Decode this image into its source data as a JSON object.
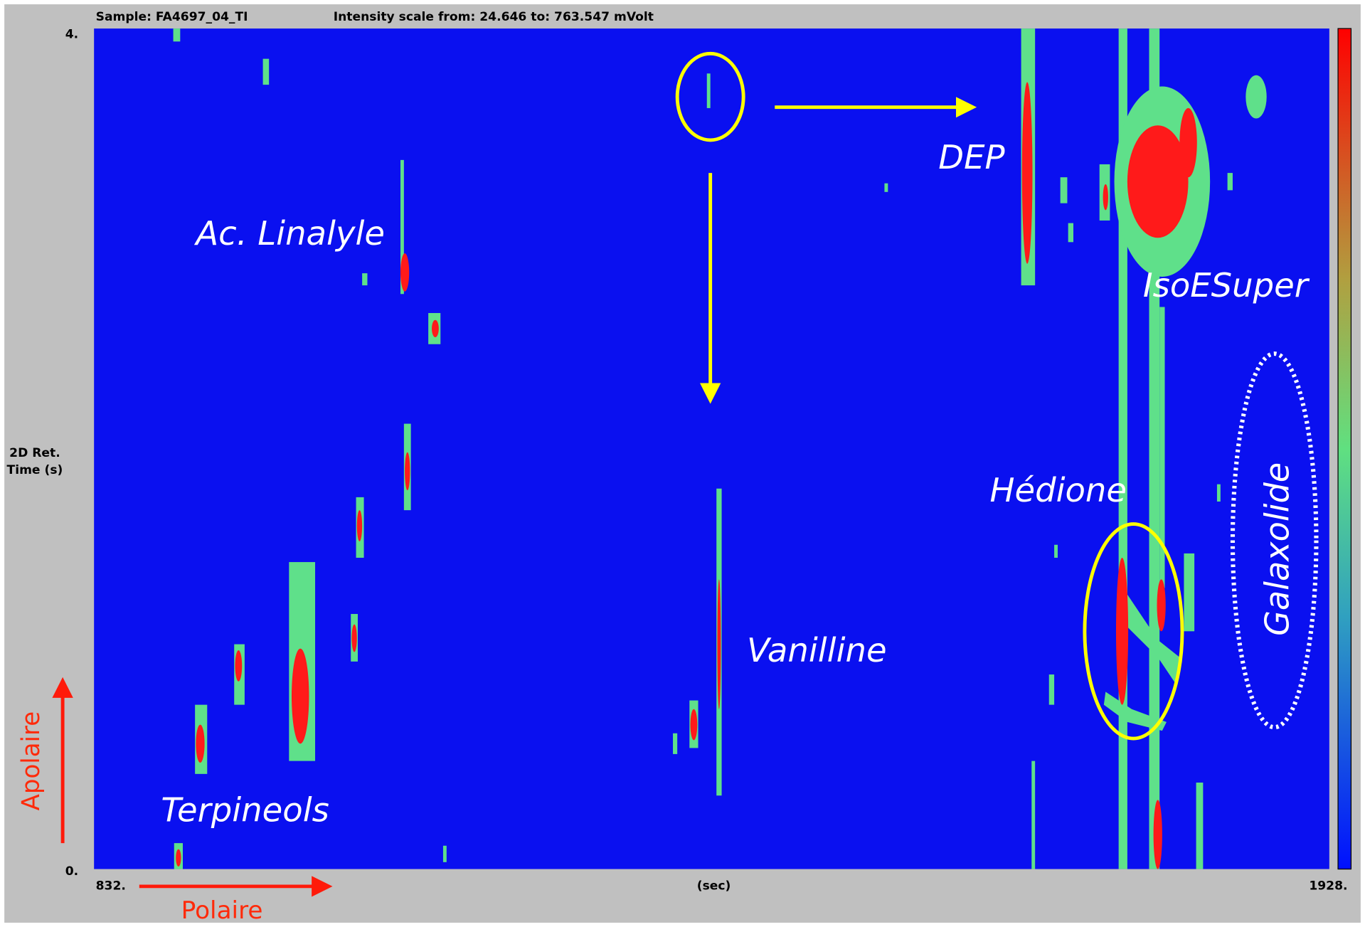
{
  "header": {
    "sample": "Sample: FA4697_04_TI",
    "intensity": "Intensity scale from: 24.646 to: 763.547 mVolt"
  },
  "y_axis": {
    "top": "4.",
    "bottom": "0.",
    "label_line1": "2D Ret.",
    "label_line2": "Time (s)"
  },
  "x_axis": {
    "left": "832.",
    "right": "1928.",
    "label": "(sec)"
  },
  "annotations": {
    "ac_linalyle": "Ac. Linalyle",
    "dep": "DEP",
    "isoesuper": "IsoESuper",
    "hedione": "Hédione",
    "galaxolide": "Galaxolide",
    "vanilline": "Vanilline",
    "terpineols": "Terpineols",
    "apolaire": "Apolaire",
    "polaire": "Polaire"
  }
}
